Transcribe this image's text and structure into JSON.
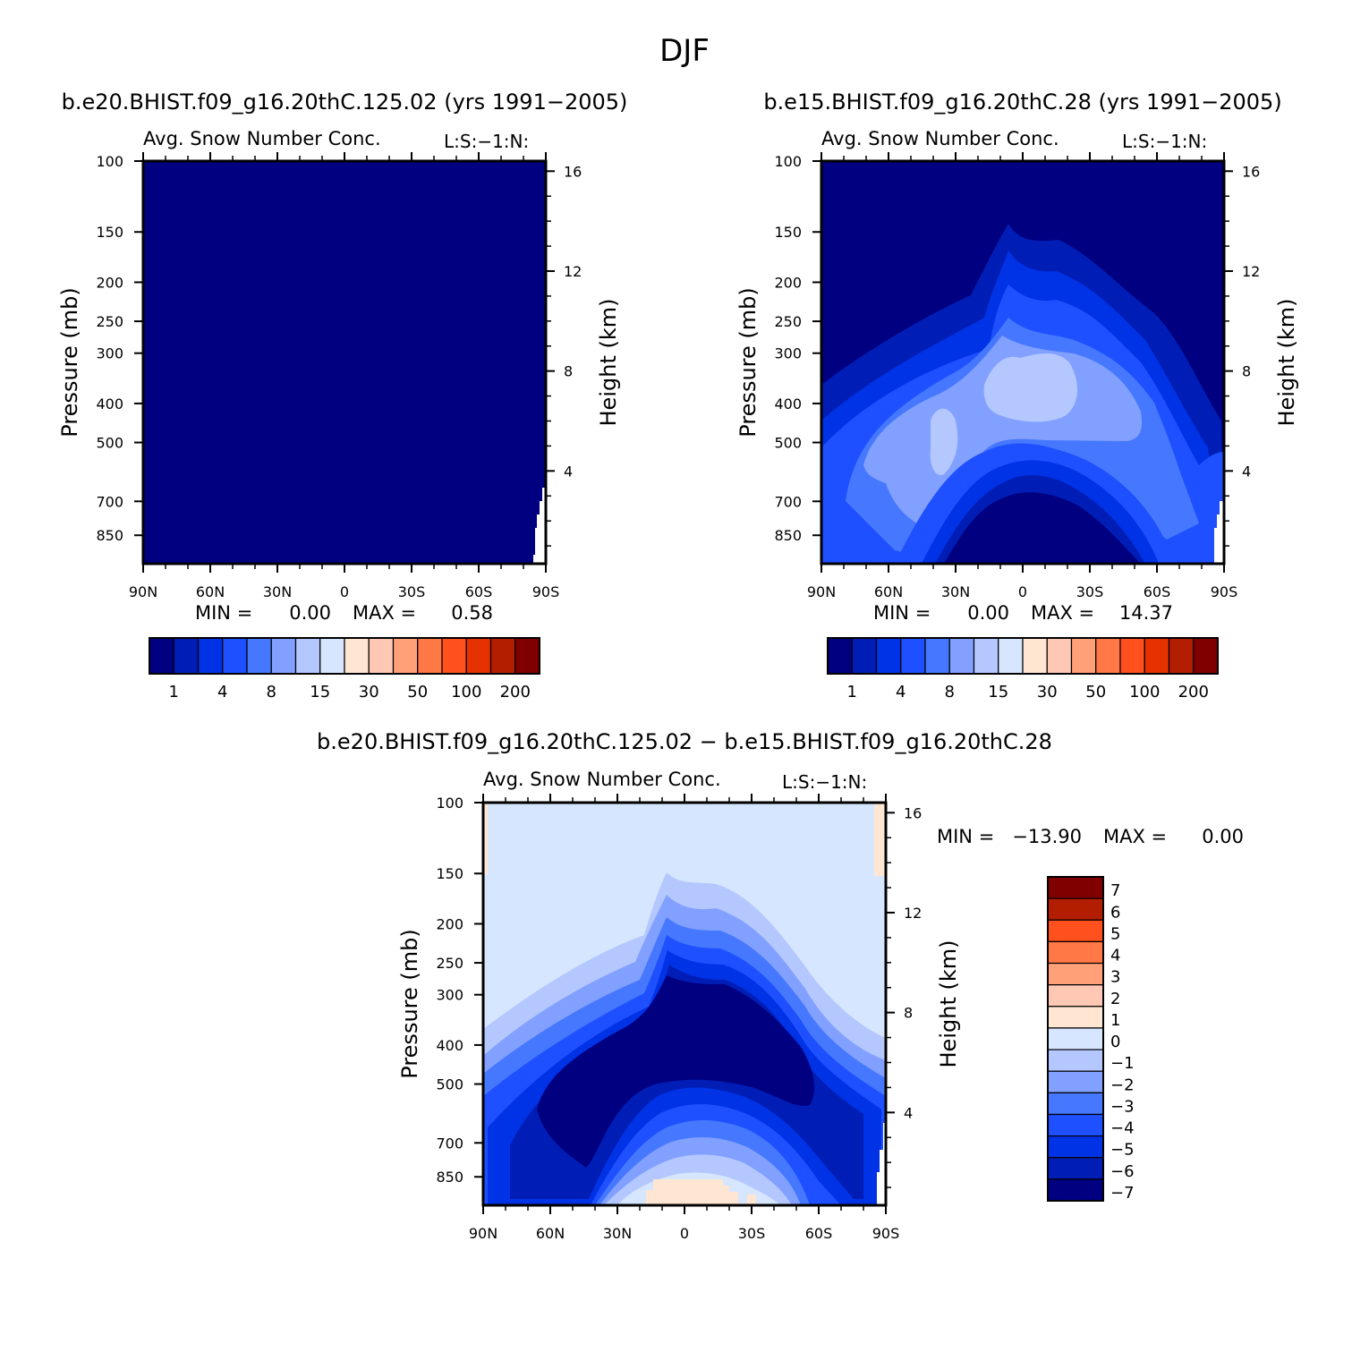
{
  "figure": {
    "title": "DJF"
  },
  "chart_data": [
    {
      "id": "p1",
      "type": "heatmap",
      "title": "b.e20.BHIST.f09_g16.20thC.125.02 (yrs 1991−2005)",
      "subtitle": "Avg. Snow Number Conc.",
      "units_note": "L:S:−1:N:",
      "ylabel": "Pressure (mb)",
      "ylabel_right": "Height (km)",
      "xlabel": "",
      "x_ticks": [
        "90N",
        "60N",
        "30N",
        "0",
        "30S",
        "60S",
        "90S"
      ],
      "y_ticks": [
        "100",
        "150",
        "200",
        "250",
        "300",
        "400",
        "500",
        "700",
        "850"
      ],
      "y_ticks_right": [
        "16",
        "12",
        "8",
        "4"
      ],
      "ylim": [
        100,
        1000
      ],
      "stats": {
        "min_label": "MIN =",
        "min": "0.00",
        "max_label": "MAX =",
        "max": "0.58"
      },
      "colorbar": {
        "orientation": "horizontal",
        "colors": [
          "#000080",
          "#001eb5",
          "#0032e6",
          "#1e50ff",
          "#4678ff",
          "#82a0ff",
          "#b4c8ff",
          "#d7e6ff",
          "#ffe6d2",
          "#ffc8b4",
          "#ffa078",
          "#ff7846",
          "#ff501e",
          "#e63200",
          "#b41e00",
          "#800000"
        ],
        "labels": [
          "1",
          "4",
          "8",
          "15",
          "30",
          "50",
          "100",
          "200"
        ]
      },
      "field_note": "uniform lowest contour level everywhere"
    },
    {
      "id": "p2",
      "type": "heatmap",
      "title": "b.e15.BHIST.f09_g16.20thC.28 (yrs 1991−2005)",
      "subtitle": "Avg. Snow Number Conc.",
      "units_note": "L:S:−1:N:",
      "ylabel": "Pressure (mb)",
      "ylabel_right": "Height (km)",
      "xlabel": "",
      "x_ticks": [
        "90N",
        "60N",
        "30N",
        "0",
        "30S",
        "60S",
        "90S"
      ],
      "y_ticks": [
        "100",
        "150",
        "200",
        "250",
        "300",
        "400",
        "500",
        "700",
        "850"
      ],
      "y_ticks_right": [
        "16",
        "12",
        "8",
        "4"
      ],
      "ylim": [
        100,
        1000
      ],
      "stats": {
        "min_label": "MIN =",
        "min": "0.00",
        "max_label": "MAX =",
        "max": "14.37"
      },
      "colorbar": {
        "orientation": "horizontal",
        "colors": [
          "#000080",
          "#001eb5",
          "#0032e6",
          "#1e50ff",
          "#4678ff",
          "#82a0ff",
          "#b4c8ff",
          "#d7e6ff",
          "#ffe6d2",
          "#ffc8b4",
          "#ffa078",
          "#ff7846",
          "#ff501e",
          "#e63200",
          "#b41e00",
          "#800000"
        ],
        "labels": [
          "1",
          "4",
          "8",
          "15",
          "30",
          "50",
          "100",
          "200"
        ]
      }
    },
    {
      "id": "p3",
      "type": "heatmap",
      "title": "b.e20.BHIST.f09_g16.20thC.125.02 − b.e15.BHIST.f09_g16.20thC.28",
      "subtitle": "Avg. Snow Number Conc.",
      "units_note": "L:S:−1:N:",
      "ylabel": "Pressure (mb)",
      "ylabel_right": "Height (km)",
      "xlabel": "",
      "x_ticks": [
        "90N",
        "60N",
        "30N",
        "0",
        "30S",
        "60S",
        "90S"
      ],
      "y_ticks": [
        "100",
        "150",
        "200",
        "250",
        "300",
        "400",
        "500",
        "700",
        "850"
      ],
      "y_ticks_right": [
        "16",
        "12",
        "8",
        "4"
      ],
      "ylim": [
        100,
        1000
      ],
      "stats": {
        "min_label": "MIN =",
        "min": "−13.90",
        "max_label": "MAX =",
        "max": "0.00"
      },
      "colorbar": {
        "orientation": "vertical",
        "colors_top_to_bottom": [
          "#800000",
          "#b41e00",
          "#ff501e",
          "#ff7846",
          "#ffa078",
          "#ffc8b4",
          "#ffe6d2",
          "#d7e6ff",
          "#b4c8ff",
          "#82a0ff",
          "#4678ff",
          "#1e50ff",
          "#0032e6",
          "#001eb5",
          "#000080"
        ],
        "labels_top_to_bottom": [
          "7",
          "6",
          "5",
          "4",
          "3",
          "2",
          "1",
          "0",
          "−1",
          "−2",
          "−3",
          "−4",
          "−5",
          "−6",
          "−7"
        ]
      }
    }
  ]
}
